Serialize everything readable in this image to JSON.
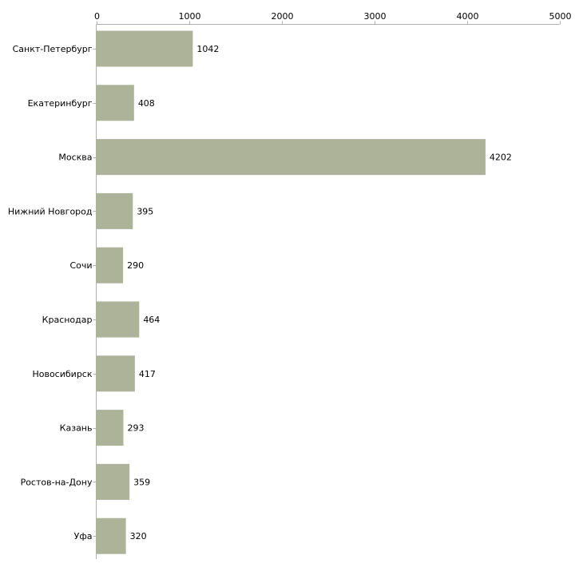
{
  "chart_data": {
    "type": "bar",
    "orientation": "horizontal",
    "title": "",
    "xlabel": "",
    "ylabel": "",
    "xlim": [
      0,
      5000
    ],
    "ticks": [
      0,
      1000,
      2000,
      3000,
      4000,
      5000
    ],
    "tick_labels": [
      "0",
      "1000",
      "2000",
      "3000",
      "4000",
      "5000"
    ],
    "grid": false,
    "axis_position": "top",
    "bar_color": "#adb399",
    "axis_color": "#b0b0b0",
    "categories": [
      "Санкт-Петербург",
      "Екатеринбург",
      "Москва",
      "Нижний Новгород",
      "Сочи",
      "Краснодар",
      "Новосибирск",
      "Казань",
      "Ростов-на-Дону",
      "Уфа"
    ],
    "values": [
      1042,
      408,
      4202,
      395,
      290,
      464,
      417,
      293,
      359,
      320
    ],
    "value_labels": [
      "1042",
      "408",
      "4202",
      "395",
      "290",
      "464",
      "417",
      "293",
      "359",
      "320"
    ]
  }
}
